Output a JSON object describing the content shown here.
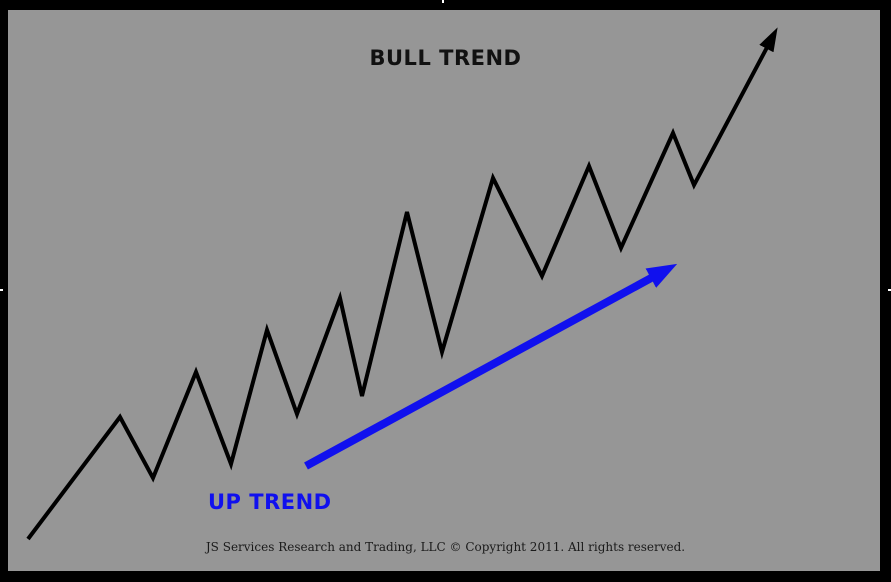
{
  "title": "BULL TREND",
  "up_trend_label": "UP TREND",
  "copyright": "JS Services Research  and Trading, LLC © Copyright 2011. All rights reserved.",
  "colors": {
    "background_frame": "#000000",
    "panel": "#969696",
    "price_line": "#000000",
    "trend_arrow": "#1010ee",
    "title_text": "#111111"
  },
  "icons": {
    "price_arrowhead": "arrow-up-right-icon",
    "trend_arrowhead": "arrow-up-right-icon"
  }
}
